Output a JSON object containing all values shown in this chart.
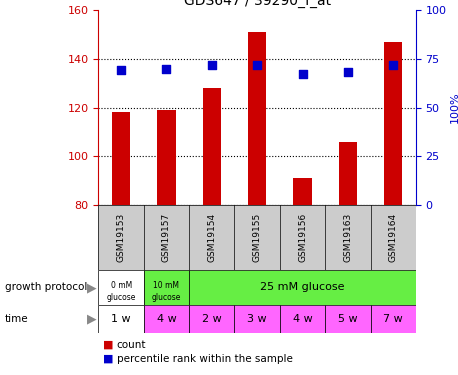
{
  "title": "GDS647 / 39290_f_at",
  "samples": [
    "GSM19153",
    "GSM19157",
    "GSM19154",
    "GSM19155",
    "GSM19156",
    "GSM19163",
    "GSM19164"
  ],
  "bar_values": [
    118,
    119,
    128,
    151,
    91,
    106,
    147
  ],
  "percentile_values": [
    69,
    70,
    72,
    72,
    67,
    68,
    72
  ],
  "bar_bottom": 80,
  "ylim_left": [
    80,
    160
  ],
  "ylim_right": [
    0,
    100
  ],
  "yticks_left": [
    80,
    100,
    120,
    140,
    160
  ],
  "yticks_right": [
    0,
    25,
    50,
    75,
    100
  ],
  "bar_color": "#cc0000",
  "dot_color": "#0000cc",
  "time_labels": [
    "1 w",
    "4 w",
    "2 w",
    "3 w",
    "4 w",
    "5 w",
    "7 w"
  ],
  "green_color": "#66ee44",
  "pink_color": "#ff66ff",
  "gray_color": "#cccccc",
  "bg_color": "#ffffff",
  "label_count": "count",
  "label_percentile": "percentile rank within the sample",
  "growth_label": "growth protocol",
  "time_label": "time",
  "ylabel_right_label": "100%"
}
